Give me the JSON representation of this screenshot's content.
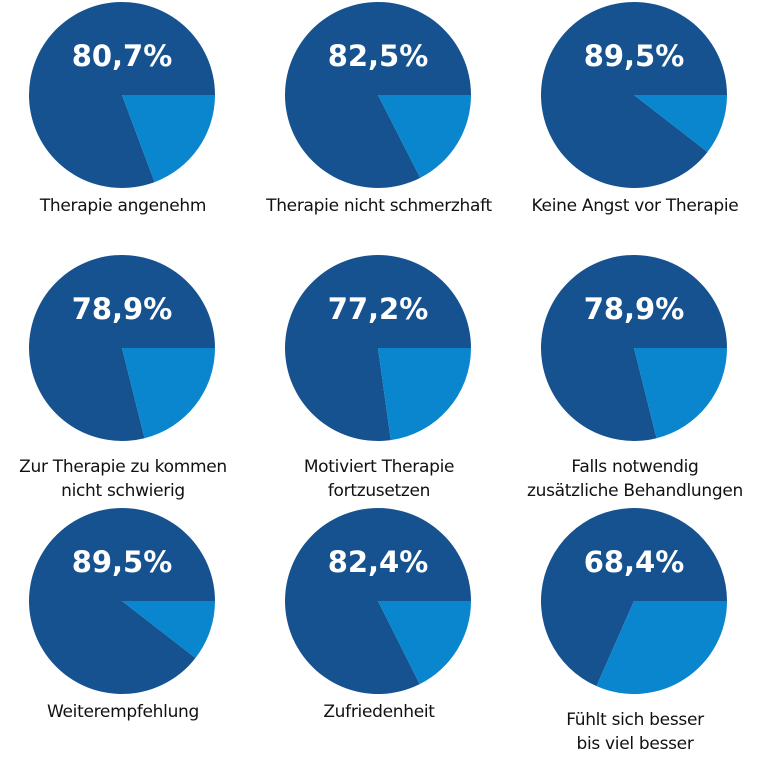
{
  "colors": {
    "main": "#16528f",
    "slice": "#0a86cf",
    "text": "#111111",
    "value_text": "#ffffff"
  },
  "chart_data": [
    {
      "type": "pie",
      "label_lines": [
        "Therapie angenehm"
      ],
      "value_label": "80,7%",
      "slices": [
        {
          "value": 80.7,
          "color": "#16528f"
        },
        {
          "value": 19.3,
          "color": "#0a86cf"
        }
      ]
    },
    {
      "type": "pie",
      "label_lines": [
        "Therapie nicht schmerzhaft"
      ],
      "value_label": "82,5%",
      "slices": [
        {
          "value": 82.5,
          "color": "#16528f"
        },
        {
          "value": 17.5,
          "color": "#0a86cf"
        }
      ]
    },
    {
      "type": "pie",
      "label_lines": [
        "Keine Angst vor Therapie"
      ],
      "value_label": "89,5%",
      "slices": [
        {
          "value": 89.5,
          "color": "#16528f"
        },
        {
          "value": 10.5,
          "color": "#0a86cf"
        }
      ]
    },
    {
      "type": "pie",
      "label_lines": [
        "Zur Therapie zu kommen",
        "nicht schwierig"
      ],
      "value_label": "78,9%",
      "slices": [
        {
          "value": 78.9,
          "color": "#16528f"
        },
        {
          "value": 21.1,
          "color": "#0a86cf"
        }
      ]
    },
    {
      "type": "pie",
      "label_lines": [
        "Motiviert Therapie",
        "fortzusetzen"
      ],
      "value_label": "77,2%",
      "slices": [
        {
          "value": 77.2,
          "color": "#16528f"
        },
        {
          "value": 22.8,
          "color": "#0a86cf"
        }
      ]
    },
    {
      "type": "pie",
      "label_lines": [
        "Falls notwendig",
        "zusätzliche Behandlungen"
      ],
      "value_label": "78,9%",
      "slices": [
        {
          "value": 78.9,
          "color": "#16528f"
        },
        {
          "value": 21.1,
          "color": "#0a86cf"
        }
      ]
    },
    {
      "type": "pie",
      "label_lines": [
        "Weiterempfehlung"
      ],
      "value_label": "89,5%",
      "slices": [
        {
          "value": 89.5,
          "color": "#16528f"
        },
        {
          "value": 10.5,
          "color": "#0a86cf"
        }
      ]
    },
    {
      "type": "pie",
      "label_lines": [
        "Zufriedenheit"
      ],
      "value_label": "82,4%",
      "slices": [
        {
          "value": 82.4,
          "color": "#16528f"
        },
        {
          "value": 17.6,
          "color": "#0a86cf"
        }
      ]
    },
    {
      "type": "pie",
      "label_lines": [
        "Fühlt sich besser",
        "bis viel besser"
      ],
      "value_label": "68,4%",
      "slices": [
        {
          "value": 68.4,
          "color": "#16528f"
        },
        {
          "value": 31.6,
          "color": "#0a86cf"
        }
      ]
    }
  ]
}
